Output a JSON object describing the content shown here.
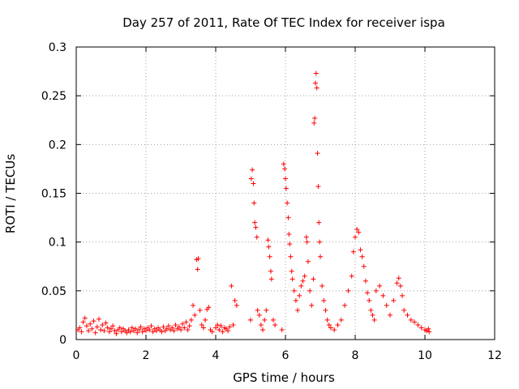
{
  "chart_data": {
    "type": "scatter",
    "title": "Day 257 of 2011, Rate Of TEC Index for receiver ispa",
    "xlabel": "GPS time / hours",
    "ylabel": "ROTI / TECUs",
    "xlim": [
      0,
      12
    ],
    "ylim": [
      0,
      0.3
    ],
    "xticks": [
      "0",
      "2",
      "4",
      "6",
      "8",
      "10",
      "12"
    ],
    "yticks": [
      "0",
      "0.05",
      "0.1",
      "0.15",
      "0.2",
      "0.25",
      "0.3"
    ],
    "grid": true,
    "marker": "+",
    "series": [
      {
        "name": "ROTI",
        "color": "#ff0000",
        "points": [
          [
            0.05,
            0.01
          ],
          [
            0.1,
            0.012
          ],
          [
            0.15,
            0.008
          ],
          [
            0.2,
            0.018
          ],
          [
            0.25,
            0.022
          ],
          [
            0.3,
            0.014
          ],
          [
            0.35,
            0.009
          ],
          [
            0.4,
            0.016
          ],
          [
            0.45,
            0.011
          ],
          [
            0.5,
            0.019
          ],
          [
            0.55,
            0.007
          ],
          [
            0.6,
            0.013
          ],
          [
            0.65,
            0.021
          ],
          [
            0.7,
            0.01
          ],
          [
            0.75,
            0.015
          ],
          [
            0.8,
            0.009
          ],
          [
            0.85,
            0.017
          ],
          [
            0.9,
            0.012
          ],
          [
            0.95,
            0.008
          ],
          [
            1.0,
            0.011
          ],
          [
            1.05,
            0.014
          ],
          [
            1.1,
            0.009
          ],
          [
            1.15,
            0.006
          ],
          [
            1.2,
            0.01
          ],
          [
            1.25,
            0.012
          ],
          [
            1.3,
            0.008
          ],
          [
            1.35,
            0.011
          ],
          [
            1.4,
            0.009
          ],
          [
            1.45,
            0.007
          ],
          [
            1.5,
            0.01
          ],
          [
            1.55,
            0.008
          ],
          [
            1.6,
            0.012
          ],
          [
            1.65,
            0.009
          ],
          [
            1.7,
            0.011
          ],
          [
            1.75,
            0.007
          ],
          [
            1.8,
            0.01
          ],
          [
            1.85,
            0.013
          ],
          [
            1.9,
            0.008
          ],
          [
            1.95,
            0.011
          ],
          [
            2.0,
            0.009
          ],
          [
            2.05,
            0.012
          ],
          [
            2.1,
            0.01
          ],
          [
            2.15,
            0.014
          ],
          [
            2.2,
            0.008
          ],
          [
            2.25,
            0.011
          ],
          [
            2.3,
            0.009
          ],
          [
            2.35,
            0.012
          ],
          [
            2.4,
            0.01
          ],
          [
            2.45,
            0.008
          ],
          [
            2.5,
            0.013
          ],
          [
            2.55,
            0.009
          ],
          [
            2.6,
            0.011
          ],
          [
            2.65,
            0.014
          ],
          [
            2.7,
            0.01
          ],
          [
            2.75,
            0.012
          ],
          [
            2.8,
            0.009
          ],
          [
            2.85,
            0.015
          ],
          [
            2.9,
            0.011
          ],
          [
            2.95,
            0.013
          ],
          [
            3.0,
            0.01
          ],
          [
            3.05,
            0.016
          ],
          [
            3.1,
            0.012
          ],
          [
            3.15,
            0.018
          ],
          [
            3.2,
            0.01
          ],
          [
            3.25,
            0.014
          ],
          [
            3.3,
            0.02
          ],
          [
            3.35,
            0.035
          ],
          [
            3.4,
            0.025
          ],
          [
            3.45,
            0.082
          ],
          [
            3.48,
            0.072
          ],
          [
            3.5,
            0.083
          ],
          [
            3.55,
            0.03
          ],
          [
            3.6,
            0.015
          ],
          [
            3.65,
            0.012
          ],
          [
            3.7,
            0.02
          ],
          [
            3.75,
            0.031
          ],
          [
            3.8,
            0.033
          ],
          [
            3.85,
            0.01
          ],
          [
            3.9,
            0.008
          ],
          [
            4.0,
            0.012
          ],
          [
            4.05,
            0.015
          ],
          [
            4.1,
            0.01
          ],
          [
            4.15,
            0.014
          ],
          [
            4.2,
            0.008
          ],
          [
            4.25,
            0.012
          ],
          [
            4.3,
            0.011
          ],
          [
            4.35,
            0.009
          ],
          [
            4.4,
            0.013
          ],
          [
            4.45,
            0.055
          ],
          [
            4.5,
            0.015
          ],
          [
            4.55,
            0.04
          ],
          [
            4.6,
            0.035
          ],
          [
            5.0,
            0.02
          ],
          [
            5.02,
            0.165
          ],
          [
            5.05,
            0.174
          ],
          [
            5.08,
            0.16
          ],
          [
            5.1,
            0.14
          ],
          [
            5.12,
            0.12
          ],
          [
            5.15,
            0.115
          ],
          [
            5.18,
            0.105
          ],
          [
            5.2,
            0.03
          ],
          [
            5.25,
            0.025
          ],
          [
            5.3,
            0.015
          ],
          [
            5.35,
            0.01
          ],
          [
            5.4,
            0.02
          ],
          [
            5.45,
            0.03
          ],
          [
            5.5,
            0.102
          ],
          [
            5.52,
            0.095
          ],
          [
            5.55,
            0.085
          ],
          [
            5.58,
            0.07
          ],
          [
            5.6,
            0.062
          ],
          [
            5.65,
            0.02
          ],
          [
            5.7,
            0.015
          ],
          [
            5.9,
            0.01
          ],
          [
            5.95,
            0.18
          ],
          [
            5.98,
            0.175
          ],
          [
            6.0,
            0.165
          ],
          [
            6.02,
            0.155
          ],
          [
            6.05,
            0.14
          ],
          [
            6.08,
            0.125
          ],
          [
            6.1,
            0.108
          ],
          [
            6.12,
            0.098
          ],
          [
            6.15,
            0.085
          ],
          [
            6.18,
            0.07
          ],
          [
            6.2,
            0.062
          ],
          [
            6.25,
            0.05
          ],
          [
            6.3,
            0.04
          ],
          [
            6.35,
            0.03
          ],
          [
            6.4,
            0.045
          ],
          [
            6.45,
            0.055
          ],
          [
            6.5,
            0.06
          ],
          [
            6.55,
            0.065
          ],
          [
            6.6,
            0.105
          ],
          [
            6.62,
            0.1
          ],
          [
            6.65,
            0.08
          ],
          [
            6.7,
            0.05
          ],
          [
            6.75,
            0.035
          ],
          [
            6.8,
            0.062
          ],
          [
            6.82,
            0.222
          ],
          [
            6.84,
            0.227
          ],
          [
            6.86,
            0.263
          ],
          [
            6.88,
            0.273
          ],
          [
            6.9,
            0.258
          ],
          [
            6.92,
            0.191
          ],
          [
            6.94,
            0.157
          ],
          [
            6.96,
            0.12
          ],
          [
            6.98,
            0.1
          ],
          [
            7.0,
            0.085
          ],
          [
            7.05,
            0.055
          ],
          [
            7.1,
            0.04
          ],
          [
            7.15,
            0.03
          ],
          [
            7.2,
            0.02
          ],
          [
            7.25,
            0.015
          ],
          [
            7.3,
            0.012
          ],
          [
            7.4,
            0.01
          ],
          [
            7.5,
            0.015
          ],
          [
            7.6,
            0.02
          ],
          [
            7.7,
            0.035
          ],
          [
            7.8,
            0.05
          ],
          [
            7.9,
            0.065
          ],
          [
            7.95,
            0.09
          ],
          [
            8.0,
            0.105
          ],
          [
            8.05,
            0.113
          ],
          [
            8.1,
            0.11
          ],
          [
            8.15,
            0.092
          ],
          [
            8.2,
            0.085
          ],
          [
            8.25,
            0.075
          ],
          [
            8.3,
            0.06
          ],
          [
            8.35,
            0.048
          ],
          [
            8.4,
            0.04
          ],
          [
            8.45,
            0.03
          ],
          [
            8.5,
            0.025
          ],
          [
            8.55,
            0.02
          ],
          [
            8.6,
            0.05
          ],
          [
            8.7,
            0.055
          ],
          [
            8.8,
            0.045
          ],
          [
            8.9,
            0.035
          ],
          [
            9.0,
            0.025
          ],
          [
            9.1,
            0.04
          ],
          [
            9.2,
            0.058
          ],
          [
            9.25,
            0.063
          ],
          [
            9.3,
            0.055
          ],
          [
            9.35,
            0.045
          ],
          [
            9.4,
            0.03
          ],
          [
            9.5,
            0.025
          ],
          [
            9.6,
            0.02
          ],
          [
            9.7,
            0.018
          ],
          [
            9.8,
            0.015
          ],
          [
            9.9,
            0.012
          ],
          [
            10.0,
            0.01
          ],
          [
            10.05,
            0.009
          ],
          [
            10.1,
            0.011
          ],
          [
            10.12,
            0.008
          ]
        ]
      }
    ]
  }
}
